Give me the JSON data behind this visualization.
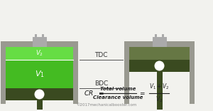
{
  "bg_color": "#f2f2ee",
  "wall_color": "#999990",
  "green_v2": "#66dd44",
  "green_v1": "#44bb22",
  "dark_piston": "#3a4a20",
  "dark_compressed": "#556633",
  "gray_top": "#aaaaaa",
  "tdc_label": "TDC",
  "bdc_label": "BDC",
  "formula_num": "Total volume",
  "formula_den": "Clearance volume",
  "copyright": "©2017mechanicalbooster.com"
}
